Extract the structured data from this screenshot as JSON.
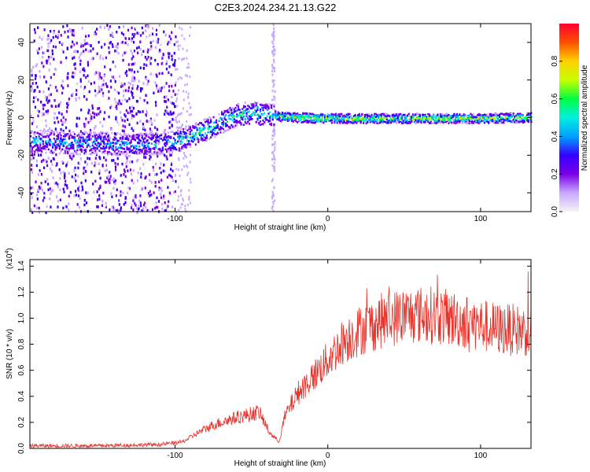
{
  "title": "C2E3.2024.234.21.13.G22",
  "chart_data": [
    {
      "type": "heatmap",
      "xlabel": "Height of straight line (km)",
      "ylabel": "Frequency (Hz)",
      "xlim": [
        -195,
        133
      ],
      "ylim": [
        -50,
        50
      ],
      "xticks": [
        -100,
        0,
        100
      ],
      "yticks": [
        -40,
        -20,
        0,
        20,
        40
      ],
      "colorbar": {
        "label": "Normalized spectral amplitude",
        "range": [
          0,
          1
        ],
        "ticks": [
          "0.0",
          "0.2",
          "0.4",
          "0.6",
          "0.8"
        ],
        "tick_values": [
          0,
          0.2,
          0.4,
          0.6,
          0.8
        ],
        "colors": [
          "#f4f4f4",
          "#c9a8ff",
          "#7a00e8",
          "#3300ff",
          "#00a0ff",
          "#00f0e0",
          "#00ff40",
          "#c8ff00",
          "#ffd000",
          "#ff5000",
          "#ff0030"
        ]
      },
      "ridge": [
        {
          "x": -195,
          "y": -12
        },
        {
          "x": -170,
          "y": -13
        },
        {
          "x": -150,
          "y": -13
        },
        {
          "x": -130,
          "y": -14
        },
        {
          "x": -110,
          "y": -13
        },
        {
          "x": -100,
          "y": -12
        },
        {
          "x": -90,
          "y": -9
        },
        {
          "x": -80,
          "y": -6
        },
        {
          "x": -70,
          "y": -2
        },
        {
          "x": -60,
          "y": 2
        },
        {
          "x": -50,
          "y": 3
        },
        {
          "x": -40,
          "y": 2
        },
        {
          "x": -30,
          "y": 1
        },
        {
          "x": -20,
          "y": 0.5
        },
        {
          "x": 0,
          "y": 0
        },
        {
          "x": 50,
          "y": 0
        },
        {
          "x": 100,
          "y": 0
        },
        {
          "x": 133,
          "y": 0.5
        }
      ]
    },
    {
      "type": "line",
      "xlabel": "Height of straight line (km)",
      "ylabel": "SNR (10 * v/v)",
      "yscale_label": "(x10",
      "yscale_exp": "4",
      "yscale_close": ")",
      "xlim": [
        -195,
        133
      ],
      "ylim": [
        0,
        1.45
      ],
      "xticks": [
        -100,
        0,
        100
      ],
      "yticks": [
        "0.0",
        "0.2",
        "0.4",
        "0.6",
        "0.8",
        "1.0",
        "1.2",
        "1.4"
      ],
      "ytick_values": [
        0,
        0.2,
        0.4,
        0.6,
        0.8,
        1.0,
        1.2,
        1.4
      ],
      "series_color": "#e8322a",
      "envelope": [
        {
          "x": -195,
          "y": 0.02
        },
        {
          "x": -150,
          "y": 0.02
        },
        {
          "x": -110,
          "y": 0.03
        },
        {
          "x": -95,
          "y": 0.05
        },
        {
          "x": -85,
          "y": 0.12
        },
        {
          "x": -75,
          "y": 0.18
        },
        {
          "x": -65,
          "y": 0.22
        },
        {
          "x": -55,
          "y": 0.25
        },
        {
          "x": -45,
          "y": 0.28
        },
        {
          "x": -38,
          "y": 0.12
        },
        {
          "x": -32,
          "y": 0.05
        },
        {
          "x": -28,
          "y": 0.25
        },
        {
          "x": -20,
          "y": 0.42
        },
        {
          "x": -10,
          "y": 0.55
        },
        {
          "x": 0,
          "y": 0.68
        },
        {
          "x": 10,
          "y": 0.82
        },
        {
          "x": 20,
          "y": 0.9
        },
        {
          "x": 35,
          "y": 0.98
        },
        {
          "x": 50,
          "y": 1.02
        },
        {
          "x": 65,
          "y": 1.03
        },
        {
          "x": 80,
          "y": 1.0
        },
        {
          "x": 95,
          "y": 0.96
        },
        {
          "x": 110,
          "y": 0.92
        },
        {
          "x": 133,
          "y": 0.9
        }
      ]
    }
  ]
}
